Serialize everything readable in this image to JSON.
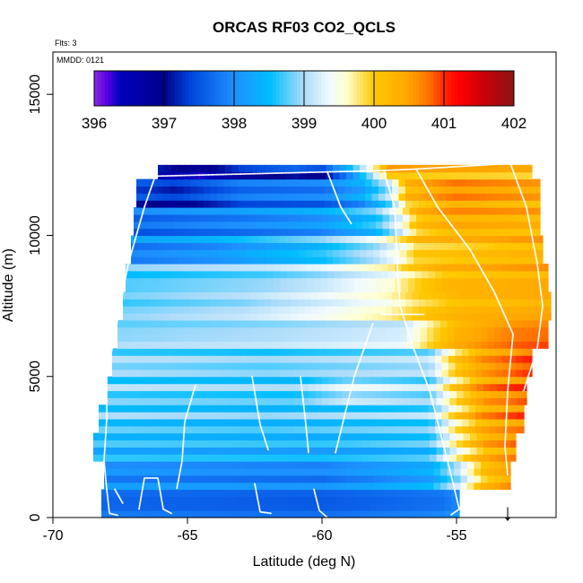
{
  "chart_data": {
    "type": "heatmap",
    "title": "ORCAS RF03 CO2_QCLS",
    "note_flights": "Flts: 3",
    "note_date": "MMDD: 0121",
    "xlabel": "Latitude (deg N)",
    "ylabel": "Altitude (m)",
    "xlim": [
      -70,
      -51.3
    ],
    "ylim": [
      0,
      16500
    ],
    "x_ticks": [
      "-70",
      "-65",
      "-60",
      "-55"
    ],
    "y_ticks": [
      "0",
      "5000",
      "10000",
      "15000"
    ],
    "colorbar": {
      "ticks": [
        "396",
        "397",
        "398",
        "399",
        "400",
        "401",
        "402"
      ],
      "range": [
        396,
        402
      ]
    },
    "marker": {
      "symbol": "↓",
      "x": -53.1
    },
    "bands": [
      {
        "y0": 0,
        "y1": 1000,
        "x0": -68.2,
        "x1": -54.9,
        "values": [
          [
            -68.2,
            397.7
          ],
          [
            -60,
            397.6
          ],
          [
            -55.5,
            397.8
          ],
          [
            -54.9,
            398.0
          ]
        ]
      },
      {
        "y0": 1000,
        "y1": 2000,
        "x0": -68.1,
        "x1": -53.0,
        "values": [
          [
            -68.1,
            398.0
          ],
          [
            -60,
            397.9
          ],
          [
            -56,
            398.3
          ],
          [
            -55.0,
            399.0
          ],
          [
            -54.0,
            400.1
          ],
          [
            -53.0,
            400.5
          ]
        ]
      },
      {
        "y0": 2000,
        "y1": 3000,
        "x0": -68.5,
        "x1": -52.8,
        "values": [
          [
            -68.5,
            398.5
          ],
          [
            -60,
            398.4
          ],
          [
            -56,
            398.6
          ],
          [
            -55.0,
            399.6
          ],
          [
            -54.0,
            400.3
          ],
          [
            -52.8,
            400.6
          ]
        ]
      },
      {
        "y0": 3000,
        "y1": 4000,
        "x0": -68.3,
        "x1": -52.5,
        "values": [
          [
            -68.3,
            398.7
          ],
          [
            -62,
            398.6
          ],
          [
            -56,
            398.8
          ],
          [
            -55.0,
            399.8
          ],
          [
            -54.0,
            400.4
          ],
          [
            -52.5,
            400.7
          ]
        ]
      },
      {
        "y0": 4000,
        "y1": 5000,
        "x0": -68.0,
        "x1": -52.4,
        "values": [
          [
            -68.0,
            398.8
          ],
          [
            -61,
            398.7
          ],
          [
            -59.0,
            399.1
          ],
          [
            -56,
            398.9
          ],
          [
            -55.0,
            399.9
          ],
          [
            -54.0,
            400.5
          ],
          [
            -52.4,
            400.8
          ]
        ]
      },
      {
        "y0": 5000,
        "y1": 6000,
        "x0": -67.8,
        "x1": -52.2,
        "values": [
          [
            -67.8,
            398.9
          ],
          [
            -62,
            398.8
          ],
          [
            -56,
            399.0
          ],
          [
            -55.0,
            400.0
          ],
          [
            -54.0,
            400.5
          ],
          [
            -52.2,
            400.9
          ]
        ]
      },
      {
        "y0": 6000,
        "y1": 7000,
        "x0": -67.6,
        "x1": -51.6,
        "values": [
          [
            -67.6,
            398.9
          ],
          [
            -62,
            399.0
          ],
          [
            -57,
            399.2
          ],
          [
            -56.0,
            399.8
          ],
          [
            -55.0,
            400.3
          ],
          [
            -53.0,
            400.7
          ],
          [
            -51.6,
            400.8
          ]
        ]
      },
      {
        "y0": 7000,
        "y1": 8000,
        "x0": -67.4,
        "x1": -51.5,
        "values": [
          [
            -67.4,
            398.8
          ],
          [
            -63,
            399.0
          ],
          [
            -60,
            399.3
          ],
          [
            -57.5,
            399.6
          ],
          [
            -56.5,
            399.9
          ],
          [
            -55.0,
            400.2
          ],
          [
            -51.5,
            400.4
          ]
        ]
      },
      {
        "y0": 8000,
        "y1": 9000,
        "x0": -67.3,
        "x1": -51.6,
        "values": [
          [
            -67.3,
            398.7
          ],
          [
            -62,
            398.9
          ],
          [
            -60,
            399.1
          ],
          [
            -57.5,
            399.5
          ],
          [
            -56.5,
            399.9
          ],
          [
            -55.5,
            400.2
          ],
          [
            -51.6,
            400.4
          ]
        ]
      },
      {
        "y0": 9000,
        "y1": 10000,
        "x0": -67.1,
        "x1": -51.8,
        "values": [
          [
            -67.1,
            397.9
          ],
          [
            -64,
            398.1
          ],
          [
            -60,
            398.6
          ],
          [
            -58,
            399.1
          ],
          [
            -57,
            399.6
          ],
          [
            -56.5,
            400.0
          ],
          [
            -51.8,
            400.3
          ]
        ]
      },
      {
        "y0": 10000,
        "y1": 11000,
        "x0": -67.0,
        "x1": -51.9,
        "values": [
          [
            -67.0,
            397.7
          ],
          [
            -63,
            397.9
          ],
          [
            -60,
            398.1
          ],
          [
            -58,
            398.6
          ],
          [
            -57,
            399.4
          ],
          [
            -56.5,
            400.1
          ],
          [
            -55,
            400.4
          ],
          [
            -51.9,
            400.3
          ]
        ]
      },
      {
        "y0": 11000,
        "y1": 12000,
        "x0": -66.9,
        "x1": -51.9,
        "values": [
          [
            -66.9,
            397.4
          ],
          [
            -65.5,
            397.2
          ],
          [
            -63,
            397.7
          ],
          [
            -60,
            397.8
          ],
          [
            -58.5,
            398.2
          ],
          [
            -57.5,
            399.0
          ],
          [
            -56.8,
            400.2
          ],
          [
            -55,
            400.6
          ],
          [
            -51.9,
            400.4
          ]
        ]
      },
      {
        "y0": 12000,
        "y1": 12500,
        "x0": -66.1,
        "x1": -52.2,
        "values": [
          [
            -66.1,
            396.9
          ],
          [
            -64.5,
            396.6
          ],
          [
            -63,
            397.1
          ],
          [
            -61,
            397.4
          ],
          [
            -60,
            397.2
          ],
          [
            -59,
            398.2
          ],
          [
            -58.2,
            399.2
          ],
          [
            -57.5,
            400.3
          ],
          [
            -52.2,
            400.2
          ]
        ]
      }
    ],
    "flight_tracks": [
      [
        [
          -66.2,
          12100
        ],
        [
          -66.6,
          11000
        ],
        [
          -67.2,
          9000
        ],
        [
          -67.6,
          7000
        ],
        [
          -68.0,
          5000
        ],
        [
          -68.0,
          3500
        ],
        [
          -68.1,
          2000
        ],
        [
          -68.0,
          1000
        ],
        [
          -67.9,
          150
        ],
        [
          -67.6,
          80
        ]
      ],
      [
        [
          -66.2,
          12100
        ],
        [
          -62.0,
          12200
        ],
        [
          -59.8,
          12250
        ],
        [
          -57.7,
          12300
        ],
        [
          -56.5,
          12350
        ],
        [
          -53.0,
          12550
        ]
      ],
      [
        [
          -59.8,
          12250
        ],
        [
          -59.3,
          11000
        ],
        [
          -58.9,
          10400
        ]
      ],
      [
        [
          -57.7,
          12300
        ],
        [
          -57.3,
          11000
        ],
        [
          -57.2,
          9000
        ],
        [
          -57.1,
          7500
        ],
        [
          -56.6,
          6000
        ],
        [
          -56.0,
          4500
        ],
        [
          -55.6,
          3000
        ],
        [
          -55.2,
          1500
        ],
        [
          -54.9,
          300
        ],
        [
          -55.2,
          100
        ]
      ],
      [
        [
          -56.5,
          12350
        ],
        [
          -55.7,
          11000
        ],
        [
          -54.5,
          9500
        ],
        [
          -53.6,
          8000
        ],
        [
          -52.9,
          6500
        ],
        [
          -53.1,
          4500
        ],
        [
          -53.2,
          2500
        ],
        [
          -53.1,
          1500
        ]
      ],
      [
        [
          -53.0,
          12550
        ],
        [
          -52.4,
          11000
        ],
        [
          -52.0,
          9000
        ],
        [
          -51.8,
          7500
        ],
        [
          -52.0,
          6000
        ],
        [
          -52.5,
          4500
        ]
      ],
      [
        [
          -57.8,
          7200
        ],
        [
          -56.2,
          7200
        ]
      ],
      [
        [
          -66.8,
          300
        ],
        [
          -66.6,
          1400
        ],
        [
          -66.1,
          1400
        ],
        [
          -65.9,
          300
        ],
        [
          -65.6,
          150
        ]
      ],
      [
        [
          -62.6,
          5000
        ],
        [
          -62.3,
          3300
        ],
        [
          -62.0,
          2400
        ]
      ],
      [
        [
          -60.8,
          5000
        ],
        [
          -60.6,
          3300
        ],
        [
          -60.5,
          2300
        ]
      ],
      [
        [
          -60.3,
          1000
        ],
        [
          -60.1,
          250
        ],
        [
          -59.8,
          0
        ]
      ],
      [
        [
          -59.5,
          2300
        ],
        [
          -58.8,
          5000
        ],
        [
          -58.1,
          6900
        ]
      ],
      [
        [
          -64.7,
          4700
        ],
        [
          -65.1,
          3400
        ],
        [
          -65.2,
          2000
        ],
        [
          -65.4,
          1000
        ]
      ],
      [
        [
          -62.5,
          1200
        ],
        [
          -62.3,
          200
        ],
        [
          -61.9,
          150
        ]
      ],
      [
        [
          -67.7,
          1000
        ],
        [
          -67.4,
          500
        ]
      ]
    ]
  }
}
